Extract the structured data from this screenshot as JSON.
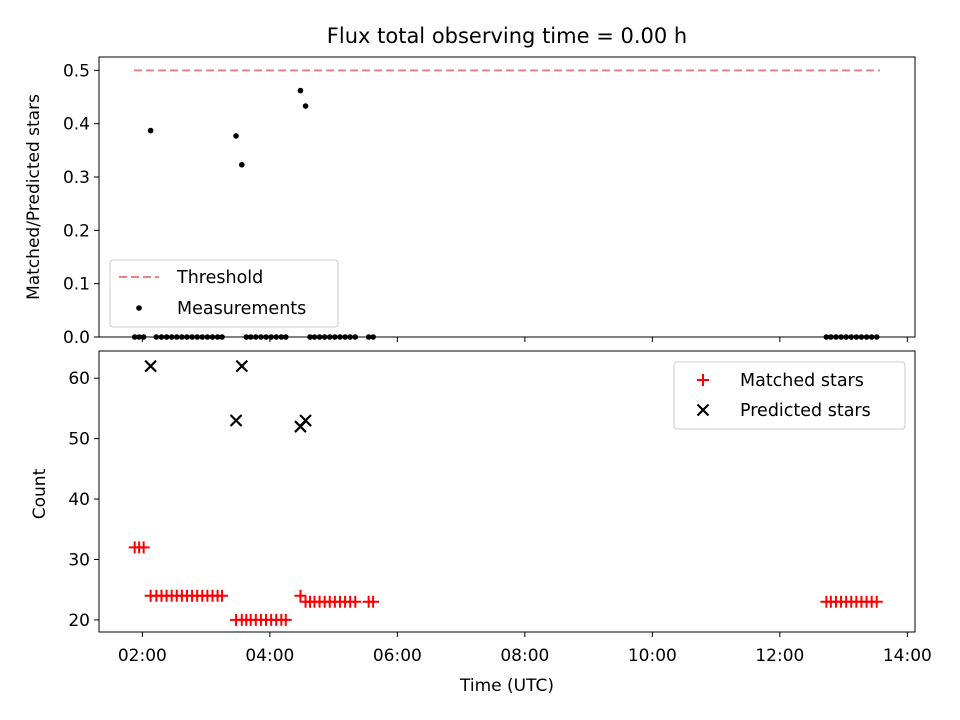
{
  "chart_data": [
    {
      "type": "scatter",
      "title": "Flux total observing time = 0.00 h",
      "xlabel": "",
      "ylabel": "Matched/Predicted stars",
      "xlim": [
        1.32,
        14.12
      ],
      "ylim": [
        0,
        0.525
      ],
      "yticks": [
        0.0,
        0.1,
        0.2,
        0.3,
        0.4,
        0.5
      ],
      "legend_position": "lower-left",
      "series": [
        {
          "name": "Threshold",
          "kind": "line",
          "color": "#f08080",
          "style": "dashed",
          "x": [
            1.87,
            13.57
          ],
          "y": [
            0.5,
            0.5
          ]
        },
        {
          "name": "Measurements",
          "kind": "scatter",
          "color": "#000000",
          "x": [
            1.88,
            1.95,
            2.02,
            2.13,
            2.22,
            2.3,
            2.38,
            2.46,
            2.54,
            2.62,
            2.7,
            2.78,
            2.86,
            2.94,
            3.02,
            3.1,
            3.18,
            3.25,
            3.47,
            3.56,
            3.63,
            3.7,
            3.78,
            3.86,
            3.94,
            4.02,
            4.1,
            4.18,
            4.25,
            4.48,
            4.56,
            4.63,
            4.7,
            4.78,
            4.86,
            4.94,
            5.02,
            5.1,
            5.18,
            5.26,
            5.34,
            5.55,
            5.62,
            12.73,
            12.8,
            12.88,
            12.96,
            13.04,
            13.12,
            13.2,
            13.28,
            13.36,
            13.44,
            13.52
          ],
          "y": [
            0,
            0,
            0,
            0.387,
            0,
            0,
            0,
            0,
            0,
            0,
            0,
            0,
            0,
            0,
            0,
            0,
            0,
            0,
            0.377,
            0.323,
            0,
            0,
            0,
            0,
            0,
            0,
            0,
            0,
            0,
            0.462,
            0.433,
            0,
            0,
            0,
            0,
            0,
            0,
            0,
            0,
            0,
            0,
            0,
            0,
            0,
            0,
            0,
            0,
            0,
            0,
            0,
            0,
            0,
            0,
            0
          ]
        }
      ]
    },
    {
      "type": "scatter",
      "title": "",
      "xlabel": "Time (UTC)",
      "ylabel": "Count",
      "xlim": [
        1.32,
        14.12
      ],
      "ylim": [
        18.0,
        64.5
      ],
      "yticks": [
        20,
        30,
        40,
        50,
        60
      ],
      "xtick_values": [
        2,
        4,
        6,
        8,
        10,
        12,
        14
      ],
      "xtick_labels": [
        "02:00",
        "04:00",
        "06:00",
        "08:00",
        "10:00",
        "12:00",
        "14:00"
      ],
      "legend_position": "top-right",
      "series": [
        {
          "name": "Matched stars",
          "kind": "scatter",
          "marker": "plus",
          "color": "#ff0000",
          "x": [
            1.88,
            1.95,
            2.02,
            2.13,
            2.22,
            2.3,
            2.38,
            2.46,
            2.54,
            2.62,
            2.7,
            2.78,
            2.86,
            2.94,
            3.02,
            3.1,
            3.18,
            3.25,
            3.47,
            3.56,
            3.63,
            3.7,
            3.78,
            3.86,
            3.94,
            4.02,
            4.1,
            4.18,
            4.25,
            4.48,
            4.56,
            4.63,
            4.7,
            4.78,
            4.86,
            4.94,
            5.02,
            5.1,
            5.18,
            5.26,
            5.34,
            5.55,
            5.62,
            12.73,
            12.8,
            12.88,
            12.96,
            13.04,
            13.12,
            13.2,
            13.28,
            13.36,
            13.44,
            13.52
          ],
          "y": [
            32,
            32,
            32,
            24,
            24,
            24,
            24,
            24,
            24,
            24,
            24,
            24,
            24,
            24,
            24,
            24,
            24,
            24,
            20,
            20,
            20,
            20,
            20,
            20,
            20,
            20,
            20,
            20,
            20,
            24,
            23,
            23,
            23,
            23,
            23,
            23,
            23,
            23,
            23,
            23,
            23,
            23,
            23,
            23,
            23,
            23,
            23,
            23,
            23,
            23,
            23,
            23,
            23,
            23
          ]
        },
        {
          "name": "Predicted stars",
          "kind": "scatter",
          "marker": "x",
          "color": "#000000",
          "x": [
            2.13,
            3.47,
            3.56,
            4.48,
            4.56
          ],
          "y": [
            62,
            53,
            62,
            52,
            53
          ]
        }
      ]
    }
  ]
}
